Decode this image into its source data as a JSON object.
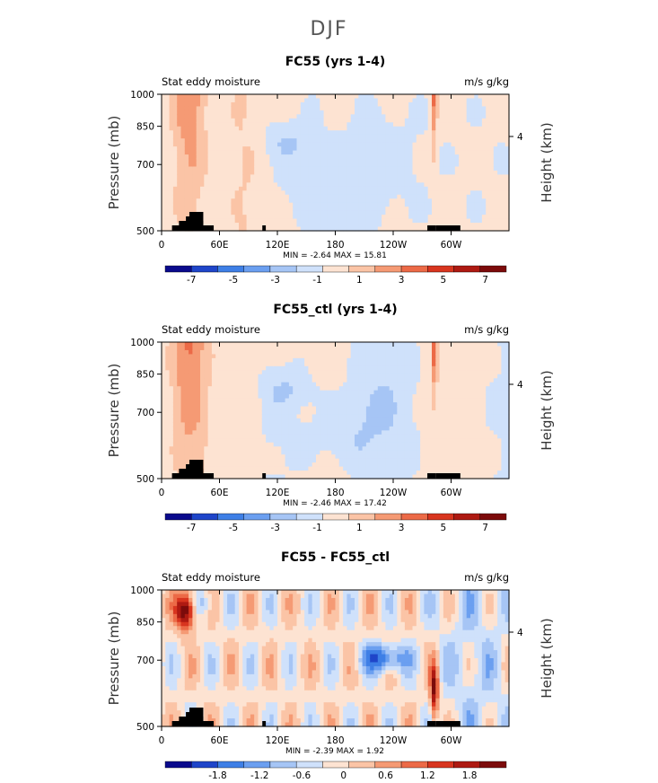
{
  "season": "DJF",
  "x_ticks": [
    "0",
    "60E",
    "120E",
    "180",
    "120W",
    "60W"
  ],
  "y_ticks": [
    "500",
    "700",
    "850",
    "1000"
  ],
  "height_tick": "4",
  "ylabel": "Pressure (mb)",
  "ylabel_right": "Height (km)",
  "colors": [
    "#0a0a8c",
    "#1f45c9",
    "#3e7fe6",
    "#6b9ff0",
    "#a6c5f5",
    "#cfe1fb",
    "#fde3d2",
    "#fbc4a6",
    "#f59a74",
    "#ec6a47",
    "#d8351f",
    "#ae1a12",
    "#7c0b0b"
  ],
  "chart_data": [
    {
      "type": "heatmap",
      "title": "FC55 (yrs 1-4)",
      "left_label": "Stat eddy moisture",
      "units": "m/s g/kg",
      "min_text": "MIN =   -2.64   MAX =  15.81",
      "min": -2.64,
      "max": 15.81,
      "colorbar_labels": [
        "-7",
        "-5",
        "-3",
        "-1",
        "1",
        "3",
        "5",
        "7"
      ],
      "xlim": [
        0,
        360
      ],
      "ylim": [
        1000,
        500
      ]
    },
    {
      "type": "heatmap",
      "title": "FC55_ctl (yrs 1-4)",
      "left_label": "Stat eddy moisture",
      "units": "m/s g/kg",
      "min_text": "MIN =   -2.46   MAX =  17.42",
      "min": -2.46,
      "max": 17.42,
      "colorbar_labels": [
        "-7",
        "-5",
        "-3",
        "-1",
        "1",
        "3",
        "5",
        "7"
      ],
      "xlim": [
        0,
        360
      ],
      "ylim": [
        1000,
        500
      ]
    },
    {
      "type": "heatmap",
      "title": "FC55 - FC55_ctl",
      "left_label": "Stat eddy moisture",
      "units": "m/s g/kg",
      "min_text": "MIN =   -2.39   MAX =   1.92",
      "min": -2.39,
      "max": 1.92,
      "colorbar_labels": [
        "-1.8",
        "-1.2",
        "-0.6",
        "0",
        "0.6",
        "1.2",
        "1.8"
      ],
      "xlim": [
        0,
        360
      ],
      "ylim": [
        1000,
        500
      ]
    }
  ]
}
